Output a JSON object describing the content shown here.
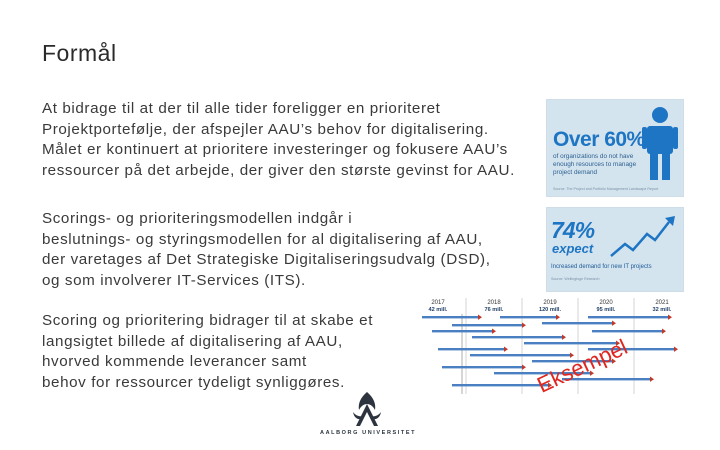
{
  "slide": {
    "title": "Formål",
    "paragraph1": [
      "At bidrage til at der til alle tider foreligger en prioriteret",
      "Projektportefølje, der afspejler AAU’s behov for digitalisering.",
      "Målet er kontinuert at prioritere investeringer og fokusere AAU’s",
      "ressourcer på det arbejde, der giver den største gevinst for AAU."
    ],
    "paragraph2": [
      "Scorings- og prioriteringsmodellen indgår i",
      "beslutnings- og styringsmodellen for al digitalisering af AAU,",
      "der varetages af Det Strategiske Digitaliseringsudvalg (DSD),",
      "og som involverer IT-Services (ITS)."
    ],
    "paragraph3": [
      "Scoring og prioritering bidrager til at skabe et",
      "langsigtet billede af digitalisering af AAU,",
      "hvorved kommende leverancer samt",
      "behov for ressourcer tydeligt synliggøres."
    ]
  },
  "card1": {
    "big": "Over 60%",
    "text": [
      "of organizations do not have",
      "enough resources to manage",
      "project demand"
    ],
    "source": "Source: The Project and Portfolio Management Landscape Report",
    "icon": "person-icon",
    "accent": "#1e75c3"
  },
  "card2": {
    "big_number": "74%",
    "big_word": "expect",
    "text": "Increased demand for new IT projects",
    "source": "Source: Wellingtoge Research",
    "icon": "trend-arrow-icon"
  },
  "timeline": {
    "years": [
      {
        "year": "2017",
        "amount": "42 mill."
      },
      {
        "year": "2018",
        "amount": "76 mill."
      },
      {
        "year": "2019",
        "amount": "120 mill."
      },
      {
        "year": "2020",
        "amount": "95 mill."
      },
      {
        "year": "2021",
        "amount": "32 mill."
      }
    ],
    "watermark": "Eksempel",
    "bar_color": "#4a7fc1",
    "watermark_color": "#e0261f"
  },
  "logo": {
    "text": "AALBORG UNIVERSITET",
    "color": "#2d3440"
  }
}
